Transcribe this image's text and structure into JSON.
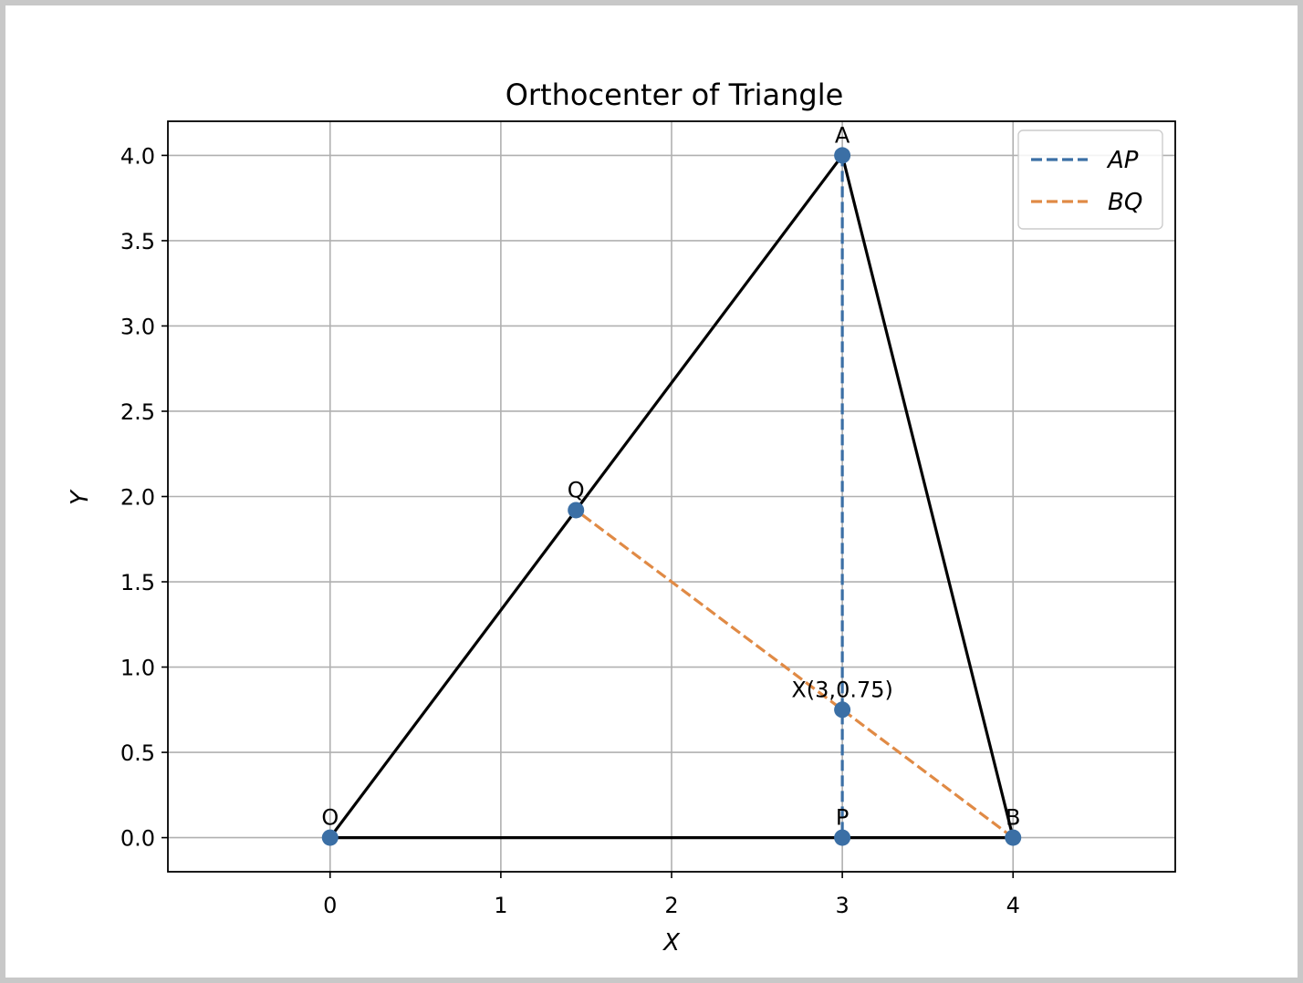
{
  "chart_data": {
    "type": "scatter",
    "title": "Orthocenter of Triangle",
    "xlabel": "X",
    "ylabel": "Y",
    "xlim": [
      -0.95,
      4.95
    ],
    "ylim": [
      -0.2,
      4.2
    ],
    "xticks": [
      0,
      1,
      2,
      3,
      4
    ],
    "xtick_labels": [
      "0",
      "1",
      "2",
      "3",
      "4"
    ],
    "yticks": [
      0.0,
      0.5,
      1.0,
      1.5,
      2.0,
      2.5,
      3.0,
      3.5,
      4.0
    ],
    "ytick_labels": [
      "0.0",
      "0.5",
      "1.0",
      "1.5",
      "2.0",
      "2.5",
      "3.0",
      "3.5",
      "4.0"
    ],
    "grid": true,
    "legend_position": "top-right",
    "triangle": [
      [
        0,
        0
      ],
      [
        3,
        4
      ],
      [
        4,
        0
      ]
    ],
    "points": [
      {
        "label": "O",
        "x": 0,
        "y": 0
      },
      {
        "label": "A",
        "x": 3,
        "y": 4
      },
      {
        "label": "B",
        "x": 4,
        "y": 0
      },
      {
        "label": "P",
        "x": 3,
        "y": 0
      },
      {
        "label": "Q",
        "x": 1.44,
        "y": 1.92
      },
      {
        "label": "X(3,0.75)",
        "x": 3,
        "y": 0.75
      }
    ],
    "series": [
      {
        "name": "AP",
        "style": "dashed",
        "color": "#3b6fa5",
        "points": [
          [
            3,
            4
          ],
          [
            3,
            0
          ]
        ]
      },
      {
        "name": "BQ",
        "style": "dashed",
        "color": "#e08a45",
        "points": [
          [
            4,
            0
          ],
          [
            1.44,
            1.92
          ]
        ]
      }
    ],
    "colors": {
      "triangle": "#000000",
      "points": "#3b6fa5",
      "grid": "#b0b0b0"
    }
  }
}
